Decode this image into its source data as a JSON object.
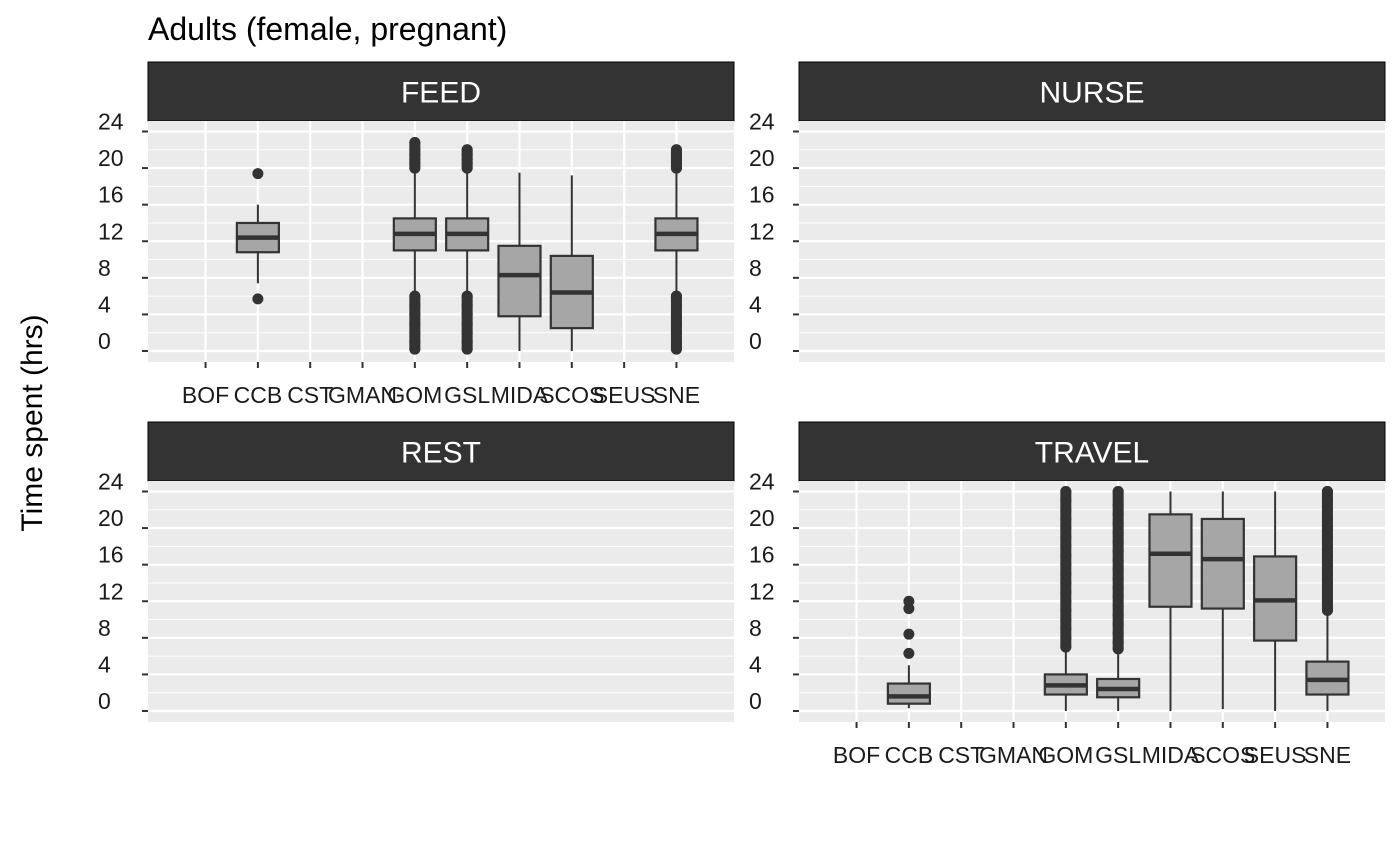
{
  "chart_data": {
    "type": "box",
    "title": "Adults (female, pregnant)",
    "ylabel": "Time spent (hrs)",
    "xlabel": "",
    "ylim": [
      -1,
      25
    ],
    "yticks": [
      0,
      4,
      8,
      12,
      16,
      20,
      24
    ],
    "categories": [
      "BOF",
      "CCB",
      "CST",
      "GMAN",
      "GOM",
      "GSL",
      "MIDA",
      "SCOS",
      "SEUS",
      "SNE"
    ],
    "grid": true,
    "colors": {
      "box_fill": "#a6a6a6",
      "line": "#333333",
      "panel_bg": "#ebebeb",
      "grid": "#ffffff",
      "strip_bg": "#333333"
    },
    "panels": [
      {
        "name": "FEED",
        "show_x_labels": true,
        "boxes": [
          {
            "category": "CCB",
            "q1": 10.8,
            "median": 12.4,
            "q3": 14.0,
            "whisker_low": 7.4,
            "whisker_high": 16.0,
            "outliers": [
              19.4,
              5.7
            ]
          },
          {
            "category": "GOM",
            "q1": 11.0,
            "median": 12.8,
            "q3": 14.5,
            "whisker_low": 6.5,
            "whisker_high": 19.5,
            "outliers": [
              20.0,
              20.5,
              21.0,
              21.5,
              22.0,
              22.8,
              6.0,
              5.0,
              4.0,
              3.0,
              2.0,
              1.0,
              0.2
            ]
          },
          {
            "category": "GSL",
            "q1": 11.0,
            "median": 12.8,
            "q3": 14.5,
            "whisker_low": 6.5,
            "whisker_high": 19.5,
            "outliers": [
              20.0,
              20.5,
              21.0,
              21.5,
              22.0,
              6.0,
              5.0,
              4.0,
              3.0,
              2.0,
              1.0,
              0.2
            ]
          },
          {
            "category": "MIDA",
            "q1": 3.8,
            "median": 8.3,
            "q3": 11.5,
            "whisker_low": 0.0,
            "whisker_high": 19.5,
            "outliers": []
          },
          {
            "category": "SCOS",
            "q1": 2.5,
            "median": 6.4,
            "q3": 10.4,
            "whisker_low": 0.0,
            "whisker_high": 19.2,
            "outliers": []
          },
          {
            "category": "SNE",
            "q1": 11.0,
            "median": 12.8,
            "q3": 14.5,
            "whisker_low": 6.5,
            "whisker_high": 19.5,
            "outliers": [
              20.0,
              20.5,
              21.0,
              21.5,
              22.0,
              6.0,
              5.0,
              4.0,
              3.0,
              2.0,
              1.0,
              0.2
            ]
          }
        ]
      },
      {
        "name": "NURSE",
        "show_x_labels": false,
        "boxes": []
      },
      {
        "name": "REST",
        "show_x_labels": false,
        "boxes": []
      },
      {
        "name": "TRAVEL",
        "show_x_labels": true,
        "boxes": [
          {
            "category": "CCB",
            "q1": 0.8,
            "median": 1.6,
            "q3": 3.0,
            "whisker_low": 0.3,
            "whisker_high": 5.0,
            "outliers": [
              6.3,
              8.4,
              11.2,
              12.0
            ]
          },
          {
            "category": "GOM",
            "q1": 1.8,
            "median": 2.8,
            "q3": 4.0,
            "whisker_low": 0.0,
            "whisker_high": 6.5,
            "outliers": [
              7.0,
              8.0,
              9.0,
              10.0,
              11.0,
              12.0,
              13.0,
              14.0,
              15.0,
              16.0,
              17.0,
              18.0,
              19.0,
              20.0,
              21.0,
              22.0,
              23.0,
              24.0
            ]
          },
          {
            "category": "GSL",
            "q1": 1.5,
            "median": 2.4,
            "q3": 3.5,
            "whisker_low": 0.0,
            "whisker_high": 6.2,
            "outliers": [
              6.8,
              7.5,
              8.5,
              9.5,
              10.5,
              11.5,
              12.5,
              13.5,
              14.5,
              15.5,
              16.5,
              17.5,
              18.5,
              19.5,
              20.5,
              21.5,
              22.5,
              24.0
            ]
          },
          {
            "category": "MIDA",
            "q1": 11.4,
            "median": 17.2,
            "q3": 21.5,
            "whisker_low": 0.0,
            "whisker_high": 24.0,
            "outliers": []
          },
          {
            "category": "SCOS",
            "q1": 11.2,
            "median": 16.6,
            "q3": 21.0,
            "whisker_low": 0.2,
            "whisker_high": 24.0,
            "outliers": []
          },
          {
            "category": "SEUS",
            "q1": 7.7,
            "median": 12.1,
            "q3": 16.9,
            "whisker_low": 0.0,
            "whisker_high": 24.0,
            "outliers": []
          },
          {
            "category": "SNE",
            "q1": 1.8,
            "median": 3.4,
            "q3": 5.4,
            "whisker_low": 0.0,
            "whisker_high": 10.5,
            "outliers": [
              11.0,
              12.0,
              13.0,
              14.0,
              15.0,
              16.0,
              17.0,
              18.0,
              19.0,
              20.0,
              21.0,
              22.0,
              23.0,
              24.0
            ]
          }
        ]
      }
    ]
  }
}
